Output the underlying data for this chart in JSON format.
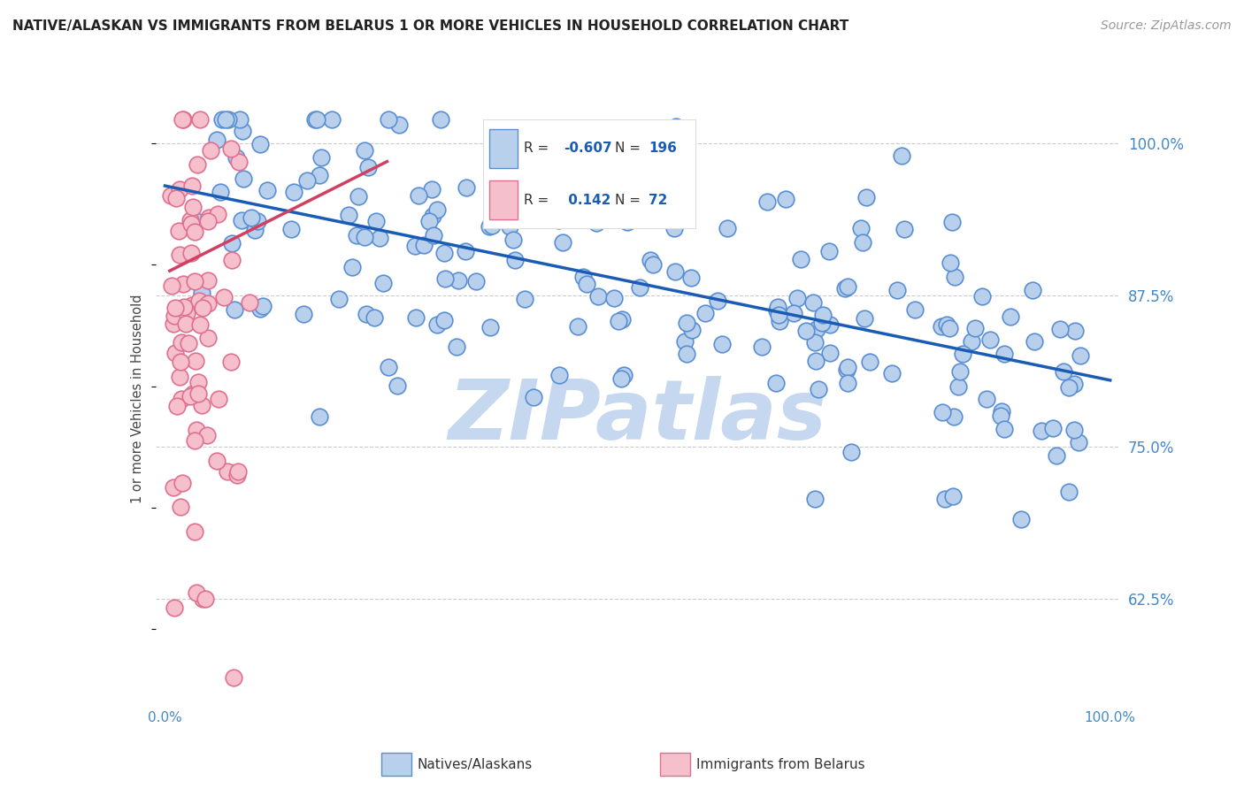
{
  "title": "NATIVE/ALASKAN VS IMMIGRANTS FROM BELARUS 1 OR MORE VEHICLES IN HOUSEHOLD CORRELATION CHART",
  "source": "Source: ZipAtlas.com",
  "ylabel": "1 or more Vehicles in Household",
  "ytick_labels": [
    "62.5%",
    "75.0%",
    "87.5%",
    "100.0%"
  ],
  "ytick_values": [
    0.625,
    0.75,
    0.875,
    1.0
  ],
  "xlim": [
    -0.01,
    1.01
  ],
  "ylim": [
    0.54,
    1.04
  ],
  "blue_R": "-0.607",
  "blue_N": "196",
  "pink_R": " 0.142",
  "pink_N": "72",
  "blue_color": "#b8d0ec",
  "blue_edge_color": "#5b8fd4",
  "blue_line_color": "#1a5cb5",
  "pink_color": "#f5c0cc",
  "pink_edge_color": "#e07090",
  "pink_line_color": "#d04060",
  "background_color": "#ffffff",
  "watermark": "ZIPatlas",
  "watermark_color": "#c5d8f0",
  "legend_label_blue": "Natives/Alaskans",
  "legend_label_pink": "Immigrants from Belarus",
  "blue_trend_x0": 0.0,
  "blue_trend_x1": 1.0,
  "blue_trend_y0": 0.965,
  "blue_trend_y1": 0.805,
  "pink_trend_x0": 0.005,
  "pink_trend_x1": 0.235,
  "pink_trend_y0": 0.895,
  "pink_trend_y1": 0.985,
  "grid_color": "#cccccc",
  "tick_color": "#4488cc",
  "title_fontsize": 11,
  "source_fontsize": 10,
  "scatter_size": 180,
  "scatter_linewidth": 1.2,
  "scatter_alpha": 1.0
}
